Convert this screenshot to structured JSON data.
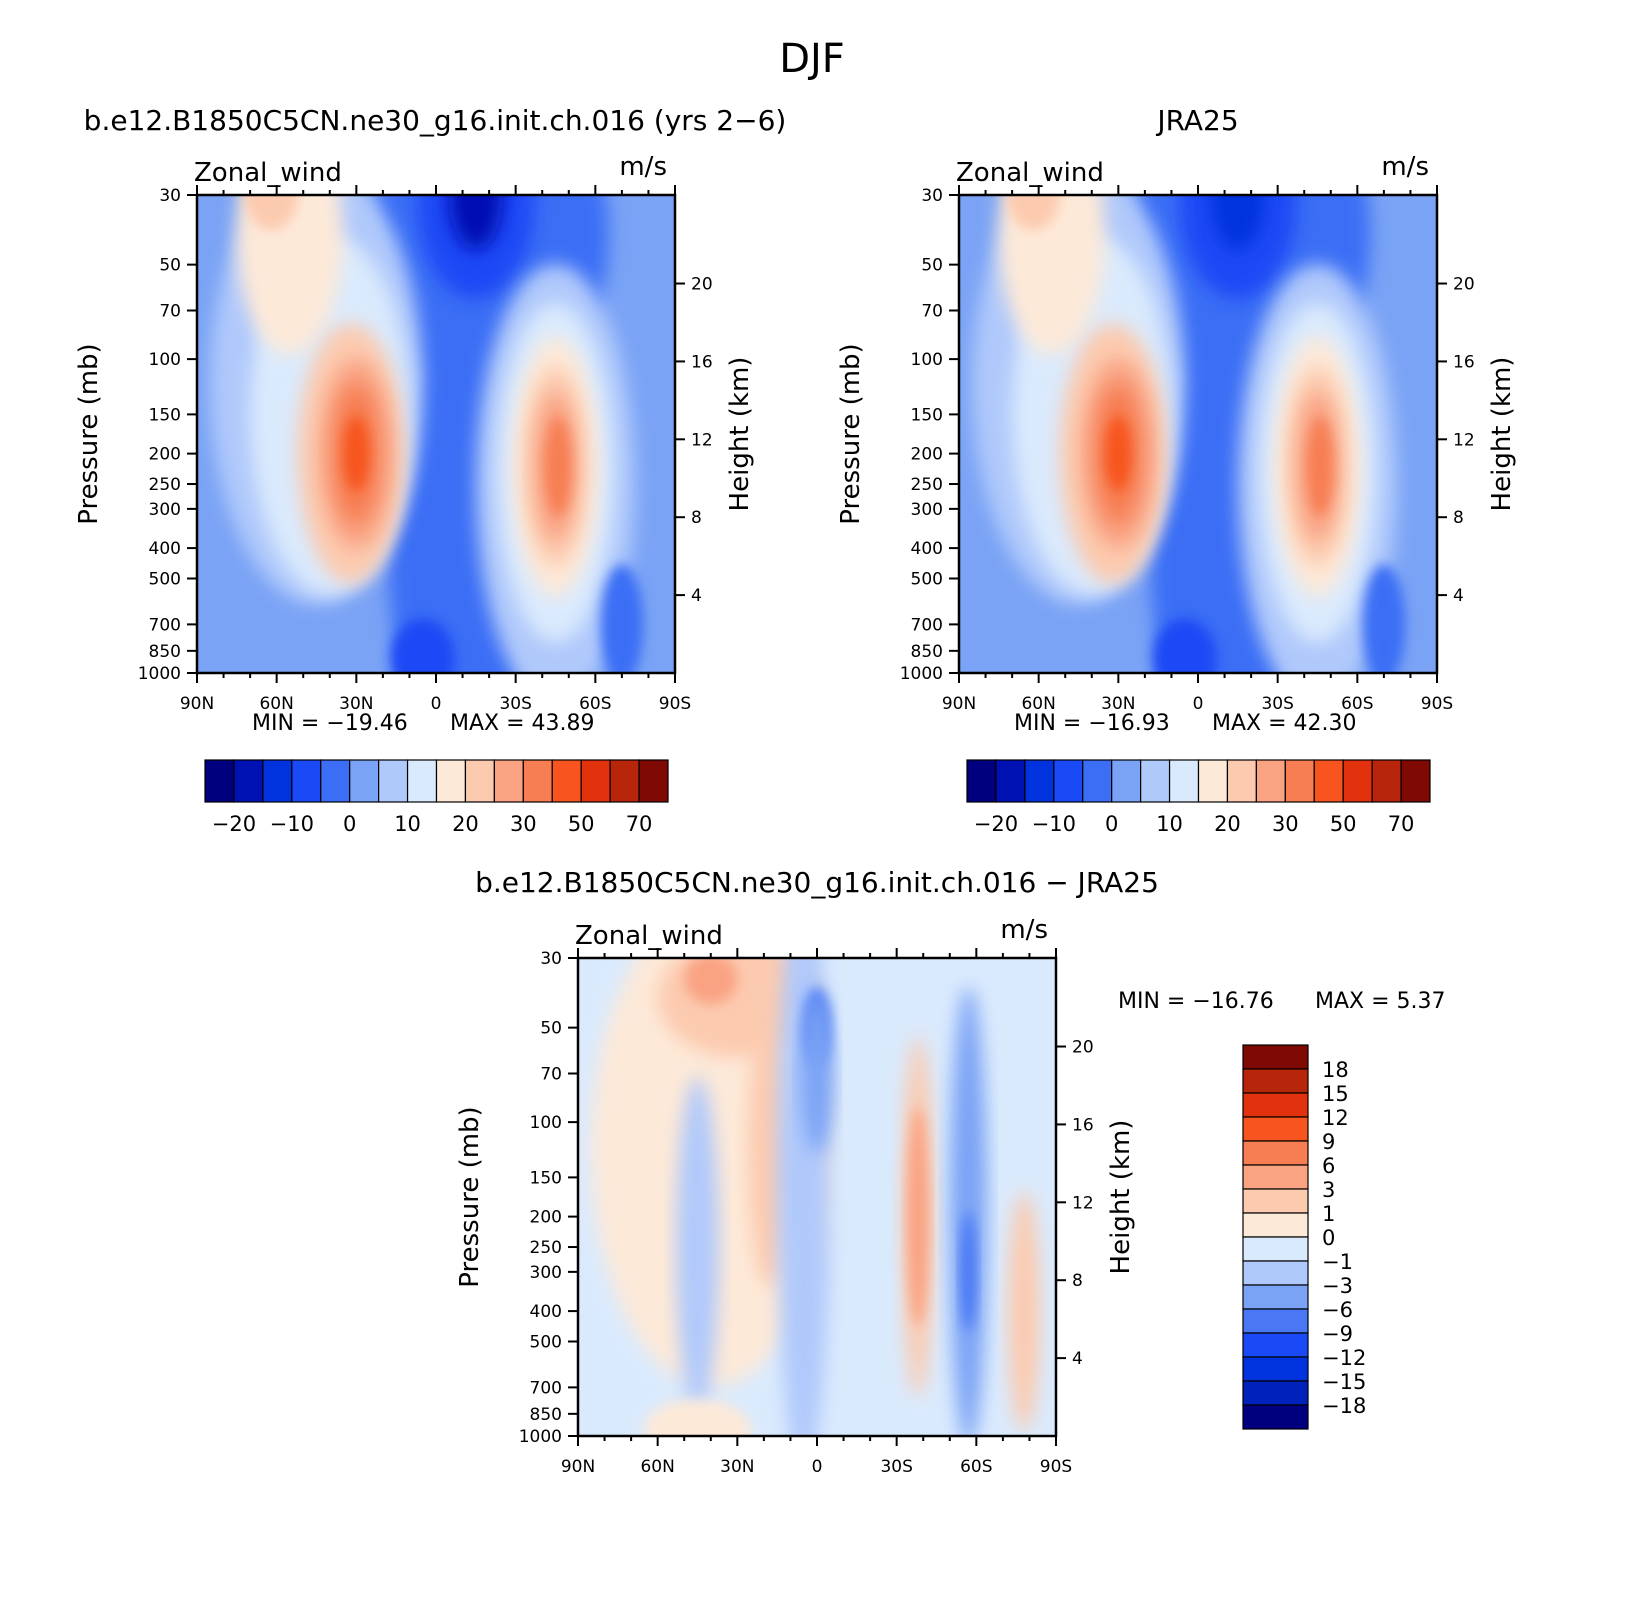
{
  "figure": {
    "title": "DJF"
  },
  "palette": {
    "full": [
      "#00007f",
      "#0011b4",
      "#0033dd",
      "#1a4af5",
      "#3b6ef5",
      "#7aa3f5",
      "#b0c9fb",
      "#daeafd",
      "#fde9d8",
      "#fccaaf",
      "#f9a383",
      "#f77e52",
      "#f7541f",
      "#e2320d",
      "#b7260a",
      "#7f0a04"
    ],
    "diff": [
      "#00007f",
      "#0022bb",
      "#0033dd",
      "#1a4af5",
      "#4a78f5",
      "#7aa3f5",
      "#b0c9fb",
      "#daeafd",
      "#fde9d8",
      "#fccaaf",
      "#f9a383",
      "#f77e52",
      "#f7541f",
      "#e2320d",
      "#b7260a",
      "#7f0a04"
    ]
  },
  "panels": [
    {
      "id": "model",
      "title": "b.e12.B1850C5CN.ne30_g16.init.ch.016 (yrs 2−6)",
      "variable": "Zonal_wind",
      "units": "m/s",
      "ylabel": "Pressure (mb)",
      "ylabel_right": "Height (km)",
      "xticks": [
        "90N",
        "60N",
        "30N",
        "0",
        "30S",
        "60S",
        "90S"
      ],
      "yticks": [
        "30",
        "50",
        "70",
        "100",
        "150",
        "200",
        "250",
        "300",
        "400",
        "500",
        "700",
        "850",
        "1000"
      ],
      "yticks_right": [
        "20",
        "16",
        "12",
        "8",
        "4"
      ],
      "min_label": "MIN = −19.46",
      "max_label": "MAX =   43.89",
      "colorbar_labels": [
        "−20",
        "−10",
        "0",
        "10",
        "20",
        "30",
        "50",
        "70"
      ]
    },
    {
      "id": "obs",
      "title": "JRA25",
      "variable": "Zonal_wind",
      "units": "m/s",
      "ylabel": "Pressure (mb)",
      "ylabel_right": "Height (km)",
      "xticks": [
        "90N",
        "60N",
        "30N",
        "0",
        "30S",
        "60S",
        "90S"
      ],
      "yticks": [
        "30",
        "50",
        "70",
        "100",
        "150",
        "200",
        "250",
        "300",
        "400",
        "500",
        "700",
        "850",
        "1000"
      ],
      "yticks_right": [
        "20",
        "16",
        "12",
        "8",
        "4"
      ],
      "min_label": "MIN = −16.93",
      "max_label": "MAX =   42.30",
      "colorbar_labels": [
        "−20",
        "−10",
        "0",
        "10",
        "20",
        "30",
        "50",
        "70"
      ]
    },
    {
      "id": "diff",
      "title": "b.e12.B1850C5CN.ne30_g16.init.ch.016 − JRA25",
      "variable": "Zonal_wind",
      "units": "m/s",
      "ylabel": "Pressure (mb)",
      "ylabel_right": "Height (km)",
      "xticks": [
        "90N",
        "60N",
        "30N",
        "0",
        "30S",
        "60S",
        "90S"
      ],
      "yticks": [
        "30",
        "50",
        "70",
        "100",
        "150",
        "200",
        "250",
        "300",
        "400",
        "500",
        "700",
        "850",
        "1000"
      ],
      "yticks_right": [
        "20",
        "16",
        "12",
        "8",
        "4"
      ],
      "min_label": "MIN = −16.76",
      "max_label": "MAX =    5.37",
      "colorbar_labels": [
        "18",
        "15",
        "12",
        "9",
        "6",
        "3",
        "1",
        "0",
        "−1",
        "−3",
        "−6",
        "−9",
        "−12",
        "−15",
        "−18"
      ]
    }
  ],
  "chart_data": [
    {
      "type": "heatmap",
      "title": "b.e12.B1850C5CN.ne30_g16.init.ch.016 (yrs 2−6)",
      "xlabel": "",
      "ylabel": "Pressure (mb)",
      "x_range": [
        -90,
        90
      ],
      "y_range_mb": [
        1000,
        30
      ],
      "y_scale": "log",
      "value_range": [
        -19.46,
        43.89
      ],
      "levels": [
        -25,
        -20,
        -15,
        -10,
        -5,
        0,
        5,
        10,
        15,
        20,
        25,
        30,
        40,
        50,
        60,
        70
      ],
      "features": [
        {
          "kind": "max",
          "lat": 30,
          "pressure_mb": 200,
          "value": 43.89
        },
        {
          "kind": "max",
          "lat": -45,
          "pressure_mb": 200,
          "value": 35
        },
        {
          "kind": "max",
          "lat": 62,
          "pressure_mb": 30,
          "value": 20
        },
        {
          "kind": "min",
          "lat": -15,
          "pressure_mb": 30,
          "value": -19.46
        }
      ]
    },
    {
      "type": "heatmap",
      "title": "JRA25",
      "xlabel": "",
      "ylabel": "Pressure (mb)",
      "x_range": [
        -90,
        90
      ],
      "y_range_mb": [
        1000,
        30
      ],
      "y_scale": "log",
      "value_range": [
        -16.93,
        42.3
      ],
      "levels": [
        -25,
        -20,
        -15,
        -10,
        -5,
        0,
        5,
        10,
        15,
        20,
        25,
        30,
        40,
        50,
        60,
        70
      ],
      "features": [
        {
          "kind": "max",
          "lat": 30,
          "pressure_mb": 200,
          "value": 42.3
        },
        {
          "kind": "max",
          "lat": -47,
          "pressure_mb": 230,
          "value": 36
        },
        {
          "kind": "max",
          "lat": 62,
          "pressure_mb": 30,
          "value": 17
        },
        {
          "kind": "min",
          "lat": -15,
          "pressure_mb": 30,
          "value": -16.93
        }
      ]
    },
    {
      "type": "heatmap",
      "title": "b.e12.B1850C5CN.ne30_g16.init.ch.016 − JRA25",
      "xlabel": "",
      "ylabel": "Pressure (mb)",
      "x_range": [
        -90,
        90
      ],
      "y_range_mb": [
        1000,
        30
      ],
      "y_scale": "log",
      "value_range": [
        -16.76,
        5.37
      ],
      "levels": [
        -18,
        -15,
        -12,
        -9,
        -6,
        -3,
        -1,
        0,
        1,
        3,
        6,
        9,
        12,
        15,
        18
      ],
      "features": [
        {
          "kind": "max",
          "lat": 40,
          "pressure_mb": 35,
          "value": 5.37
        },
        {
          "kind": "max",
          "lat": -37,
          "pressure_mb": 200,
          "value": 4
        },
        {
          "kind": "min",
          "lat": 0,
          "pressure_mb": 50,
          "value": -8
        },
        {
          "kind": "min",
          "lat": -57,
          "pressure_mb": 300,
          "value": -7
        }
      ]
    }
  ]
}
